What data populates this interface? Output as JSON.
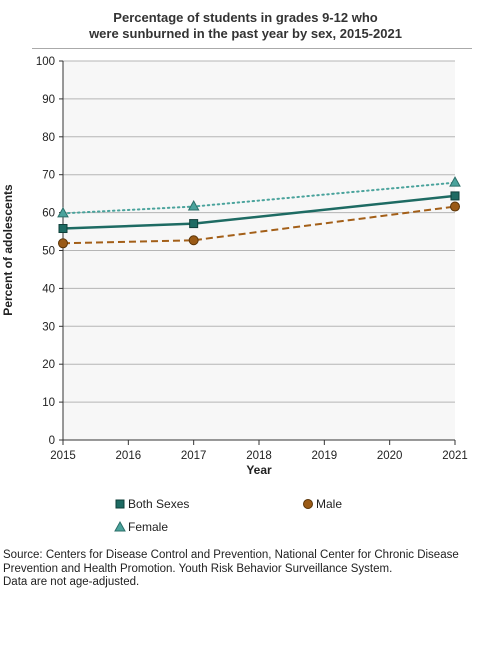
{
  "chart_data": {
    "type": "line",
    "title_lines": [
      "Percentage of students in grades 9-12 who",
      "were sunburned in the past year by sex, 2015-2021"
    ],
    "xlabel": "Year",
    "ylabel": "Percent of adolescents",
    "x_ticks": [
      2015,
      2016,
      2017,
      2018,
      2019,
      2020,
      2021
    ],
    "y_ticks": [
      0,
      10,
      20,
      30,
      40,
      50,
      60,
      70,
      80,
      90,
      100
    ],
    "xlim": [
      2015,
      2021
    ],
    "ylim": [
      0,
      100
    ],
    "grid": true,
    "legend_position": "bottom",
    "series": [
      {
        "name": "Both Sexes",
        "x": [
          2015,
          2017,
          2021
        ],
        "values": [
          55.8,
          57.1,
          64.4
        ],
        "color": "#1e6b63",
        "line_style": "solid",
        "marker": "square"
      },
      {
        "name": "Male",
        "x": [
          2015,
          2017,
          2021
        ],
        "values": [
          51.9,
          52.7,
          61.6
        ],
        "color": "#a35f18",
        "line_style": "dashed",
        "marker": "circle"
      },
      {
        "name": "Female",
        "x": [
          2015,
          2017,
          2021
        ],
        "values": [
          59.8,
          61.6,
          67.9
        ],
        "color": "#4aa39c",
        "line_style": "dotted",
        "marker": "triangle"
      }
    ]
  },
  "source": {
    "lines": [
      "Source: Centers for Disease Control and Prevention, National Center for Chronic Disease",
      "Prevention and Health Promotion. Youth Risk Behavior Surveillance System.",
      "Data are not age-adjusted."
    ]
  }
}
